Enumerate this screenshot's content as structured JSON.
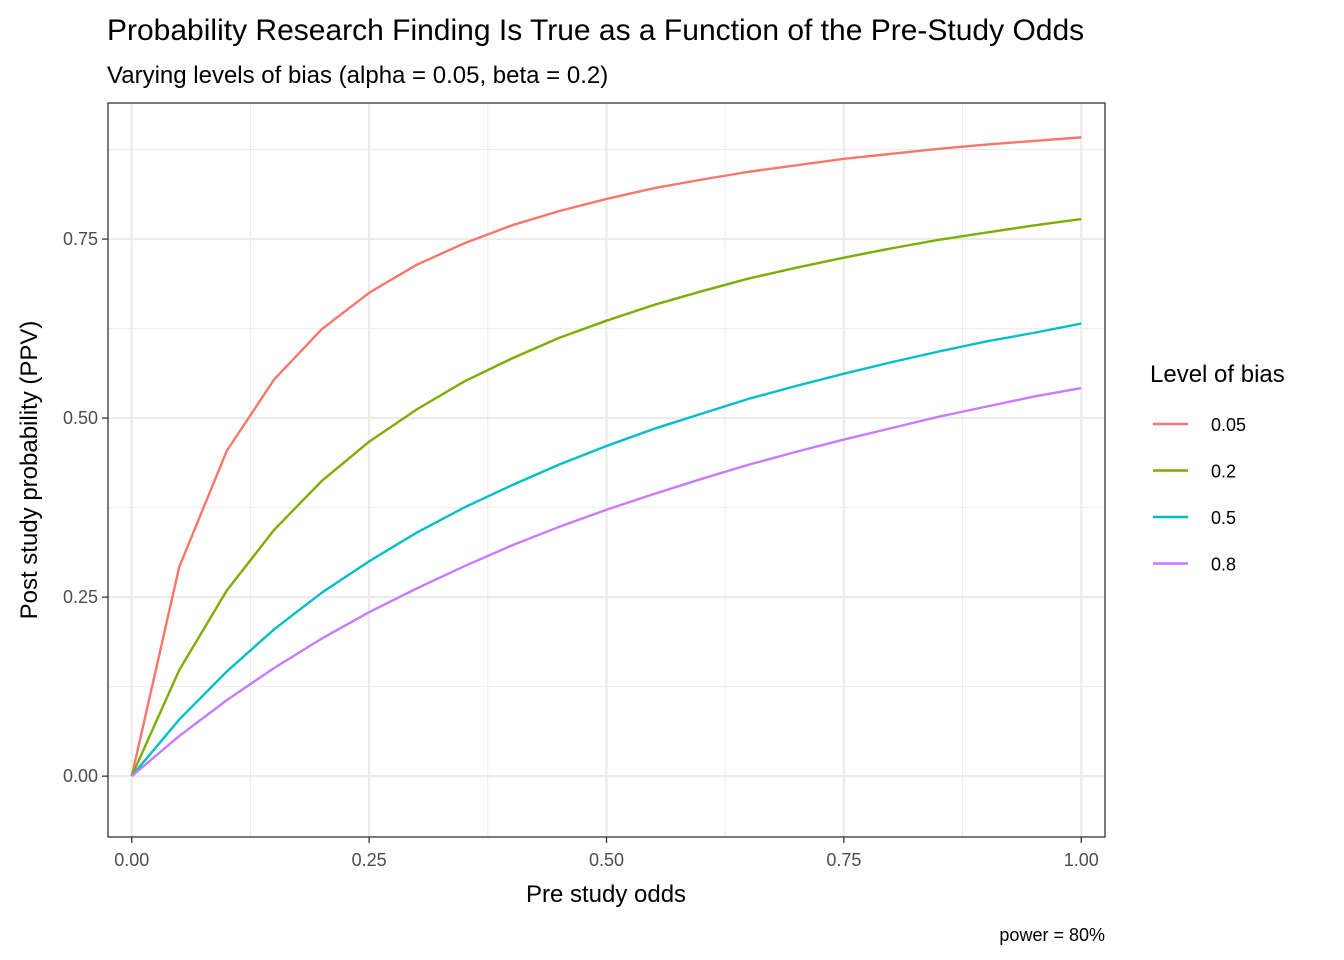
{
  "chart_data": {
    "type": "line",
    "title": "Probability Research Finding Is True as a Function of the Pre-Study Odds",
    "subtitle": "Varying levels of bias (alpha = 0.05, beta = 0.2)",
    "xlabel": "Pre study odds",
    "ylabel": "Post study probability (PPV)",
    "caption": "power = 80%",
    "xlim": [
      -0.025,
      1.025
    ],
    "ylim": [
      -0.085,
      0.94
    ],
    "x_ticks": [
      0,
      0.25,
      0.5,
      0.75,
      1.0
    ],
    "x_tick_labels": [
      "0.00",
      "0.25",
      "0.50",
      "0.75",
      "1.00"
    ],
    "y_ticks": [
      0,
      0.25,
      0.5,
      0.75
    ],
    "y_tick_labels": [
      "0.00",
      "0.25",
      "0.50",
      "0.75"
    ],
    "grid": true,
    "legend": {
      "title": "Level of bias",
      "position": "right"
    },
    "x": [
      0,
      0.05,
      0.1,
      0.15,
      0.2,
      0.25,
      0.3,
      0.35,
      0.4,
      0.45,
      0.5,
      0.55,
      0.6,
      0.65,
      0.7,
      0.75,
      0.8,
      0.85,
      0.9,
      0.95,
      1.0
    ],
    "series": [
      {
        "name": "0.05",
        "color": "#F8766D",
        "values": [
          0,
          0.292,
          0.454,
          0.554,
          0.624,
          0.675,
          0.714,
          0.744,
          0.769,
          0.789,
          0.806,
          0.821,
          0.833,
          0.844,
          0.853,
          0.862,
          0.869,
          0.876,
          0.882,
          0.887,
          0.892
        ]
      },
      {
        "name": "0.2",
        "color": "#7CAE00",
        "values": [
          0,
          0.148,
          0.259,
          0.344,
          0.412,
          0.467,
          0.512,
          0.551,
          0.583,
          0.612,
          0.636,
          0.658,
          0.677,
          0.695,
          0.71,
          0.724,
          0.737,
          0.749,
          0.759,
          0.769,
          0.778
        ]
      },
      {
        "name": "0.5",
        "color": "#00BFC4",
        "values": [
          0,
          0.079,
          0.146,
          0.205,
          0.256,
          0.3,
          0.34,
          0.375,
          0.406,
          0.435,
          0.461,
          0.485,
          0.506,
          0.527,
          0.545,
          0.562,
          0.578,
          0.593,
          0.607,
          0.619,
          0.632
        ]
      },
      {
        "name": "0.8",
        "color": "#C77CFF",
        "values": [
          0,
          0.056,
          0.106,
          0.151,
          0.192,
          0.229,
          0.262,
          0.293,
          0.322,
          0.348,
          0.372,
          0.394,
          0.415,
          0.435,
          0.453,
          0.47,
          0.486,
          0.502,
          0.516,
          0.53,
          0.542
        ]
      }
    ]
  }
}
